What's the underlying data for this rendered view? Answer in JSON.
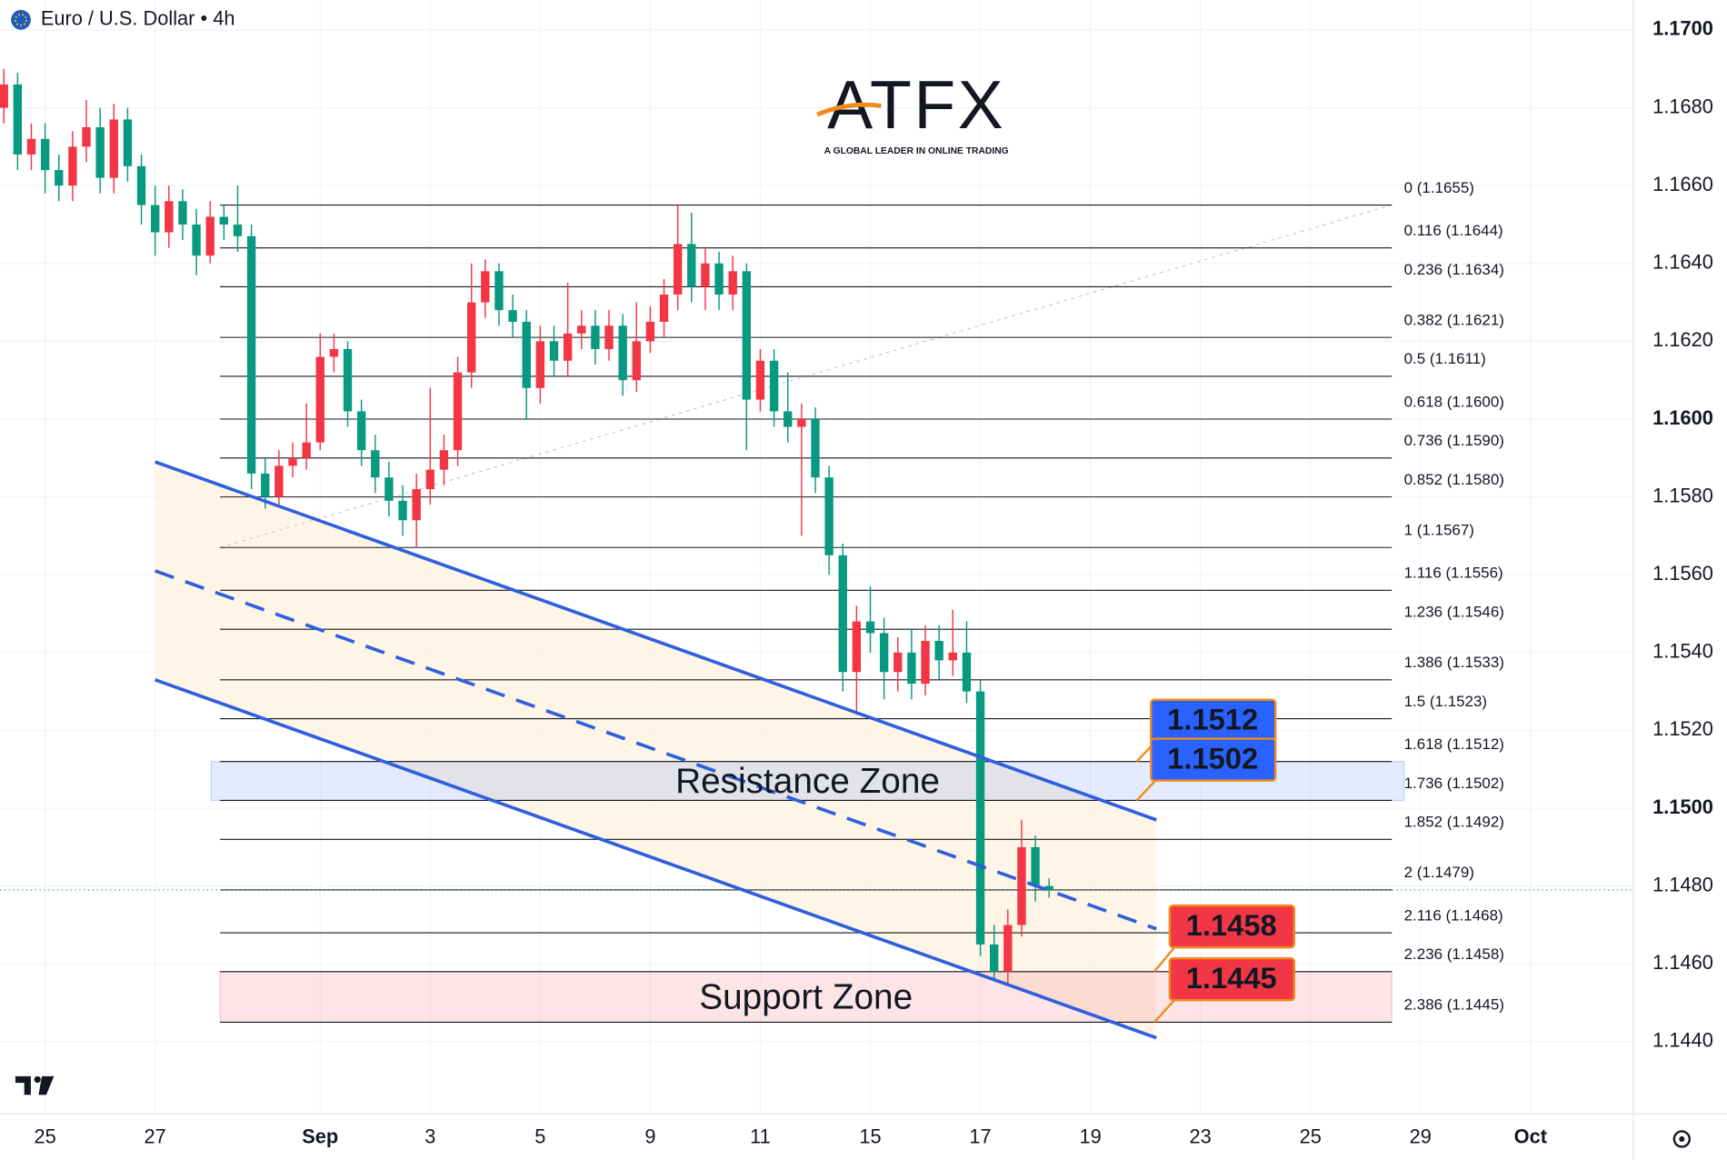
{
  "header": {
    "title": "Euro / U.S. Dollar • 4h"
  },
  "logo": {
    "title": "ATFX",
    "tagline": "A GLOBAL LEADER IN ONLINE TRADING"
  },
  "chart_data": {
    "type": "candlestick",
    "up_color": "#f23645",
    "down_color": "#089981",
    "xlim": [
      -0.82,
      28.87
    ],
    "ylim": [
      1.14215,
      1.17077
    ],
    "grid": true,
    "xticks": [
      {
        "value": 0,
        "label": "25"
      },
      {
        "value": 2,
        "label": "27"
      },
      {
        "value": 5,
        "label": "Sep"
      },
      {
        "value": 7,
        "label": "3"
      },
      {
        "value": 9,
        "label": "5"
      },
      {
        "value": 11,
        "label": "9"
      },
      {
        "value": 13,
        "label": "11"
      },
      {
        "value": 15,
        "label": "15"
      },
      {
        "value": 17,
        "label": "17"
      },
      {
        "value": 19,
        "label": "19"
      },
      {
        "value": 21,
        "label": "23"
      },
      {
        "value": 23,
        "label": "25"
      },
      {
        "value": 25,
        "label": "29"
      },
      {
        "value": 27,
        "label": "Oct"
      }
    ],
    "yticks": [
      {
        "value": 1.17,
        "label": "1.1700"
      },
      {
        "value": 1.168,
        "label": "1.1680"
      },
      {
        "value": 1.166,
        "label": "1.1660"
      },
      {
        "value": 1.164,
        "label": "1.1640"
      },
      {
        "value": 1.162,
        "label": "1.1620"
      },
      {
        "value": 1.16,
        "label": "1.1600"
      },
      {
        "value": 1.158,
        "label": "1.1580"
      },
      {
        "value": 1.156,
        "label": "1.1560"
      },
      {
        "value": 1.154,
        "label": "1.1540"
      },
      {
        "value": 1.152,
        "label": "1.1520"
      },
      {
        "value": 1.15,
        "label": "1.1500"
      },
      {
        "value": 1.148,
        "label": "1.1480"
      },
      {
        "value": 1.146,
        "label": "1.1460"
      },
      {
        "value": 1.144,
        "label": "1.1440"
      }
    ],
    "candles": {
      "x": [
        -0.75,
        -0.5,
        -0.25,
        0,
        0.25,
        0.5,
        0.75,
        1,
        1.25,
        1.5,
        1.75,
        2,
        2.25,
        2.5,
        2.75,
        3,
        3.25,
        3.5,
        3.75,
        4,
        4.25,
        4.5,
        4.75,
        5,
        5.25,
        5.5,
        5.75,
        6,
        6.25,
        6.5,
        6.75,
        7,
        7.25,
        7.5,
        7.75,
        8,
        8.25,
        8.5,
        8.75,
        9,
        9.25,
        9.5,
        9.75,
        10,
        10.25,
        10.5,
        10.75,
        11,
        11.25,
        11.5,
        11.75,
        12,
        12.25,
        12.5,
        12.75,
        13,
        13.25,
        13.5,
        13.75,
        14,
        14.25,
        14.5,
        14.75,
        15,
        15.25,
        15.5,
        15.75,
        16,
        16.25,
        16.5,
        16.75,
        17,
        17.25,
        17.5,
        17.75,
        18,
        18.25
      ],
      "open": [
        1.168,
        1.1686,
        1.1668,
        1.1672,
        1.1664,
        1.166,
        1.167,
        1.1675,
        1.1662,
        1.1677,
        1.1665,
        1.1655,
        1.1648,
        1.1656,
        1.165,
        1.1642,
        1.1652,
        1.165,
        1.1647,
        1.1586,
        1.158,
        1.1588,
        1.159,
        1.1594,
        1.1616,
        1.1618,
        1.1602,
        1.1592,
        1.1585,
        1.1579,
        1.1574,
        1.1582,
        1.1587,
        1.1592,
        1.1612,
        1.163,
        1.1638,
        1.1628,
        1.1625,
        1.1608,
        1.162,
        1.1615,
        1.1622,
        1.1624,
        1.1618,
        1.1624,
        1.161,
        1.162,
        1.1625,
        1.1632,
        1.1645,
        1.1634,
        1.164,
        1.1632,
        1.1638,
        1.1605,
        1.1615,
        1.1602,
        1.1598,
        1.16,
        1.1585,
        1.1565,
        1.1535,
        1.1548,
        1.1545,
        1.1535,
        1.154,
        1.1532,
        1.1543,
        1.1538,
        1.154,
        1.153,
        1.1465,
        1.1458,
        1.147,
        1.149,
        1.148
      ],
      "high": [
        1.169,
        1.1689,
        1.1676,
        1.1676,
        1.1668,
        1.1674,
        1.1682,
        1.168,
        1.1681,
        1.168,
        1.1668,
        1.166,
        1.166,
        1.1659,
        1.1654,
        1.1656,
        1.1655,
        1.166,
        1.165,
        1.159,
        1.1592,
        1.1594,
        1.1604,
        1.1622,
        1.1622,
        1.162,
        1.1605,
        1.1596,
        1.1589,
        1.1583,
        1.1586,
        1.1608,
        1.1596,
        1.1616,
        1.164,
        1.1641,
        1.164,
        1.1632,
        1.1628,
        1.1624,
        1.1624,
        1.1635,
        1.1628,
        1.1628,
        1.1628,
        1.1627,
        1.163,
        1.1629,
        1.1636,
        1.1655,
        1.1653,
        1.1644,
        1.1643,
        1.1642,
        1.164,
        1.1618,
        1.1618,
        1.1612,
        1.1604,
        1.1603,
        1.1588,
        1.1568,
        1.1552,
        1.1557,
        1.1549,
        1.1544,
        1.1546,
        1.1547,
        1.1547,
        1.1551,
        1.1548,
        1.1533,
        1.147,
        1.1474,
        1.1497,
        1.1493,
        1.1482
      ],
      "low": [
        1.1676,
        1.1664,
        1.1664,
        1.1658,
        1.1656,
        1.1656,
        1.1666,
        1.1658,
        1.1658,
        1.1661,
        1.165,
        1.1642,
        1.1644,
        1.1646,
        1.1637,
        1.164,
        1.1646,
        1.1643,
        1.1582,
        1.1577,
        1.1578,
        1.1585,
        1.1587,
        1.1592,
        1.1612,
        1.1598,
        1.1588,
        1.1581,
        1.1575,
        1.157,
        1.1567,
        1.1578,
        1.1583,
        1.1588,
        1.1608,
        1.1626,
        1.1624,
        1.1621,
        1.16,
        1.1604,
        1.1611,
        1.1611,
        1.1618,
        1.1614,
        1.1615,
        1.1606,
        1.1607,
        1.1617,
        1.1621,
        1.1628,
        1.163,
        1.1628,
        1.1628,
        1.1628,
        1.1592,
        1.1602,
        1.1598,
        1.1594,
        1.157,
        1.1581,
        1.156,
        1.153,
        1.1524,
        1.154,
        1.1528,
        1.153,
        1.1528,
        1.1529,
        1.1533,
        1.1534,
        1.1527,
        1.1462,
        1.1456,
        1.1455,
        1.1467,
        1.1476,
        1.1477
      ],
      "close": [
        1.1686,
        1.1668,
        1.1672,
        1.1664,
        1.166,
        1.167,
        1.1675,
        1.1662,
        1.1677,
        1.1665,
        1.1655,
        1.1648,
        1.1656,
        1.165,
        1.1642,
        1.1652,
        1.165,
        1.1647,
        1.1586,
        1.158,
        1.1588,
        1.159,
        1.1594,
        1.1616,
        1.1618,
        1.1602,
        1.1592,
        1.1585,
        1.1579,
        1.1574,
        1.1582,
        1.1587,
        1.1592,
        1.1612,
        1.163,
        1.1638,
        1.1628,
        1.1625,
        1.1608,
        1.162,
        1.1615,
        1.1622,
        1.1624,
        1.1618,
        1.1624,
        1.161,
        1.162,
        1.1625,
        1.1632,
        1.1645,
        1.1634,
        1.164,
        1.1632,
        1.1638,
        1.1605,
        1.1615,
        1.1602,
        1.1598,
        1.16,
        1.1585,
        1.1565,
        1.1535,
        1.1548,
        1.1545,
        1.1535,
        1.154,
        1.1532,
        1.1543,
        1.1538,
        1.154,
        1.153,
        1.1465,
        1.1458,
        1.147,
        1.149,
        1.148,
        1.1479
      ]
    },
    "fib": {
      "x": [
        3.18,
        24.48
      ],
      "levels": [
        {
          "value": 1.1655,
          "label": "0 (1.1655)"
        },
        {
          "value": 1.1644,
          "label": "0.116 (1.1644)"
        },
        {
          "value": 1.1634,
          "label": "0.236 (1.1634)"
        },
        {
          "value": 1.1621,
          "label": "0.382 (1.1621)"
        },
        {
          "value": 1.1611,
          "label": "0.5 (1.1611)"
        },
        {
          "value": 1.16,
          "label": "0.618 (1.1600)"
        },
        {
          "value": 1.159,
          "label": "0.736 (1.1590)"
        },
        {
          "value": 1.158,
          "label": "0.852 (1.1580)"
        },
        {
          "value": 1.1567,
          "label": "1 (1.1567)"
        },
        {
          "value": 1.1556,
          "label": "1.116 (1.1556)"
        },
        {
          "value": 1.1546,
          "label": "1.236 (1.1546)"
        },
        {
          "value": 1.1533,
          "label": "1.386 (1.1533)"
        },
        {
          "value": 1.1523,
          "label": "1.5 (1.1523)"
        },
        {
          "value": 1.1512,
          "label": "1.618 (1.1512)"
        },
        {
          "value": 1.1502,
          "label": "1.736 (1.1502)"
        },
        {
          "value": 1.1492,
          "label": "1.852 (1.1492)"
        },
        {
          "value": 1.1479,
          "label": "2 (1.1479)"
        },
        {
          "value": 1.1468,
          "label": "2.116 (1.1468)"
        },
        {
          "value": 1.1458,
          "label": "2.236 (1.1458)"
        },
        {
          "value": 1.1445,
          "label": "2.386 (1.1445)"
        }
      ]
    },
    "channel": {
      "x": [
        2.0,
        20.2
      ],
      "upper": [
        1.1589,
        1.1497
      ],
      "middle": [
        1.1561,
        1.1469
      ],
      "lower": [
        1.1533,
        1.1441
      ],
      "color": "#2f5fdc"
    },
    "zones": [
      {
        "label": "Resistance Zone",
        "top": 1.1512,
        "bottom": 1.1502,
        "x": [
          3.02,
          24.7
        ],
        "color": "#2962ff"
      },
      {
        "label": "Support Zone",
        "top": 1.1458,
        "bottom": 1.1445,
        "x": [
          3.18,
          24.48
        ],
        "color": "#f23645"
      }
    ]
  }
}
